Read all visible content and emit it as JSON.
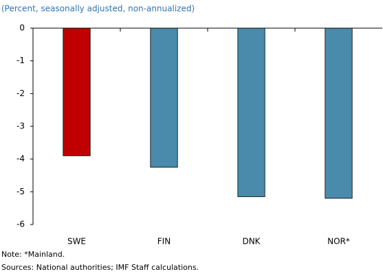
{
  "chart_data": {
    "type": "bar",
    "subtitle": "(Percent, seasonally adjusted, non-annualized)",
    "categories": [
      "SWE",
      "FIN",
      "DNK",
      "NOR*"
    ],
    "values": [
      -3.9,
      -4.25,
      -5.15,
      -5.2
    ],
    "colors": [
      "#c00000",
      "#4a8aab",
      "#4a8aab",
      "#4a8aab"
    ],
    "ylim": [
      -6,
      0
    ],
    "yticks": [
      0,
      -1,
      -2,
      -3,
      -4,
      -5,
      -6
    ],
    "grid": false,
    "note": "Note: *Mainland.",
    "source": "Sources: National authorities; IMF Staff calculations."
  }
}
